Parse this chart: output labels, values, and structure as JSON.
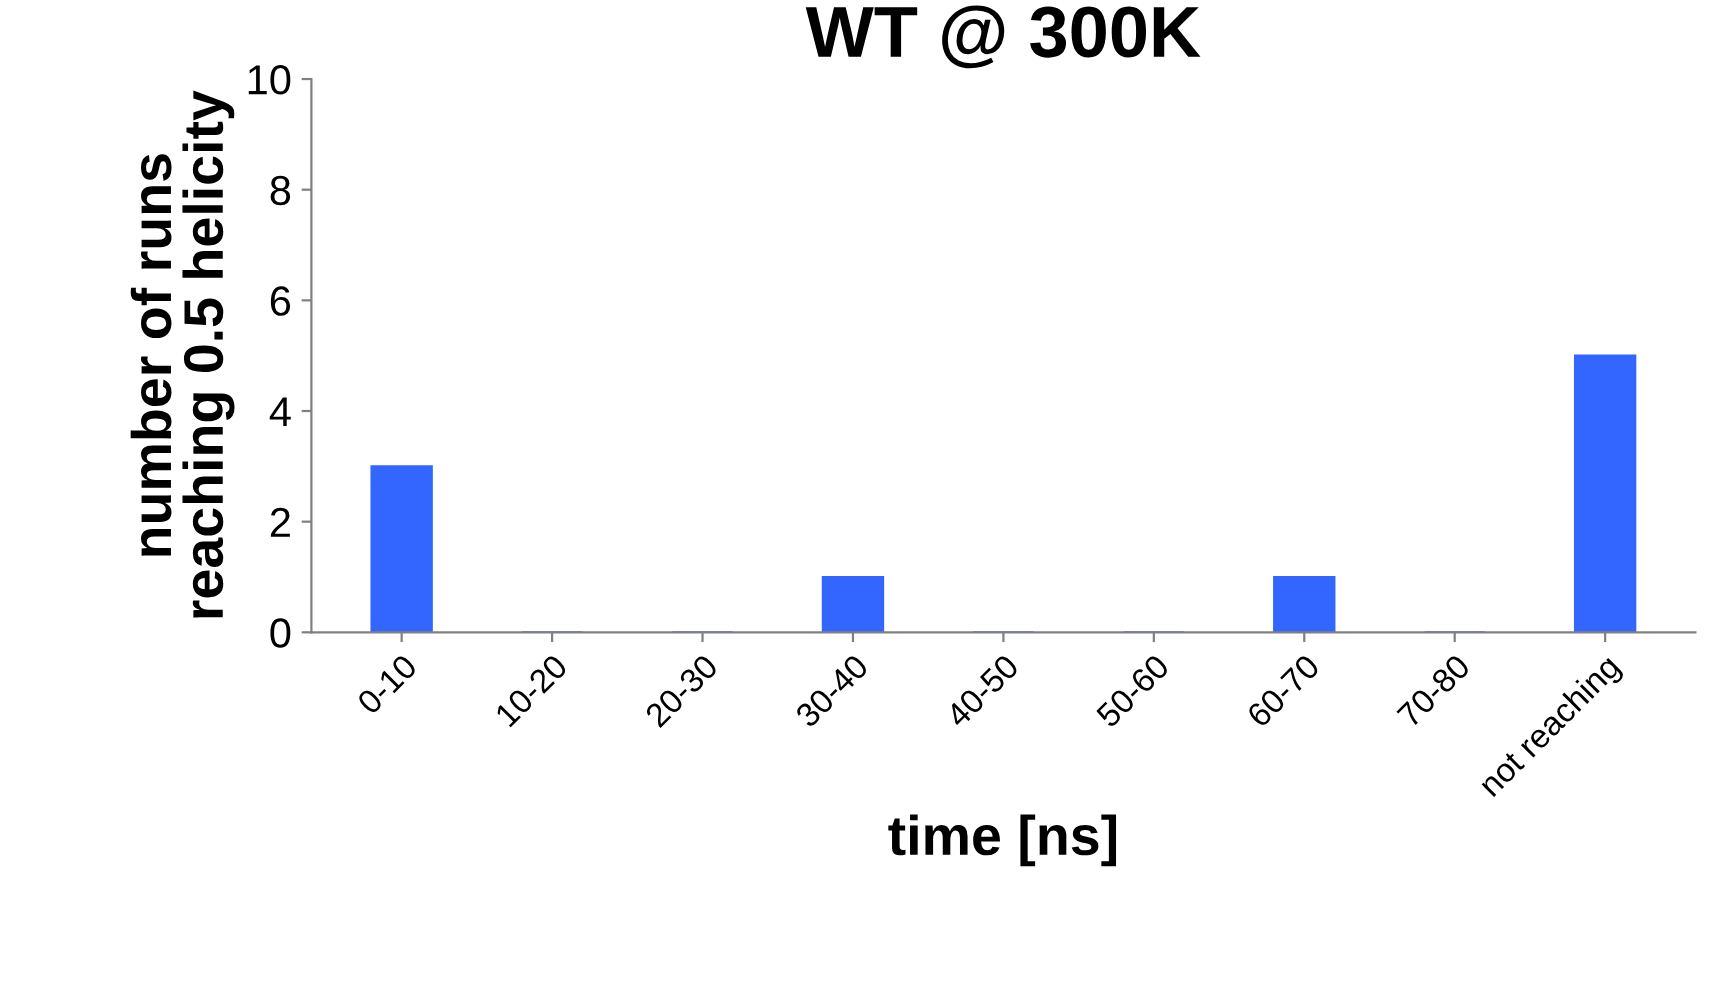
{
  "chart_data": {
    "type": "bar",
    "title": "WT @ 300K",
    "xlabel": "time [ns]",
    "ylabel": "number of runs\nreaching 0.5 helicity",
    "categories": [
      "0-10",
      "10-20",
      "20-30",
      "30-40",
      "40-50",
      "50-60",
      "60-70",
      "70-80",
      "not reaching"
    ],
    "values": [
      3,
      0,
      0,
      1,
      0,
      0,
      1,
      0,
      5
    ],
    "color": "#3366ff",
    "ylim": [
      0,
      10
    ],
    "yticks": [
      0,
      2,
      4,
      6,
      8,
      10
    ],
    "grid": false
  }
}
